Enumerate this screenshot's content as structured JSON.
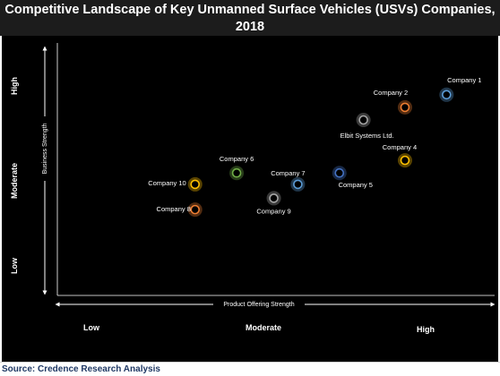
{
  "header": {
    "title": "Competitive Landscape of Key Unmanned Surface Vehicles (USVs) Companies, 2018"
  },
  "footer": {
    "source": "Source: Credence Research Analysis"
  },
  "chart_data": {
    "type": "scatter",
    "title": "Competitive Landscape of Key Unmanned Surface Vehicles (USVs) Companies, 2018",
    "xlabel": "Product Offering Strength",
    "ylabel": "Business Strength",
    "xlim": [
      0,
      10
    ],
    "ylim": [
      0,
      10
    ],
    "x_tick_labels": [
      "Low",
      "Moderate",
      "High"
    ],
    "y_tick_labels": [
      "Low",
      "Moderate",
      "High"
    ],
    "grid": false,
    "legend": "none",
    "points": [
      {
        "label": "Company 1",
        "x": 8.9,
        "y": 7.95,
        "color": "#5b9bd5"
      },
      {
        "label": "Company 2",
        "x": 7.95,
        "y": 7.45,
        "color": "#ed7d31"
      },
      {
        "label": "Elbit Systems Ltd.",
        "x": 7.0,
        "y": 6.95,
        "color": "#a5a5a5"
      },
      {
        "label": "Company 4",
        "x": 7.95,
        "y": 5.35,
        "color": "#ffc000"
      },
      {
        "label": "Company 5",
        "x": 6.45,
        "y": 4.85,
        "color": "#4472c4"
      },
      {
        "label": "Company 6",
        "x": 4.1,
        "y": 4.85,
        "color": "#70ad47"
      },
      {
        "label": "Company 7",
        "x": 5.5,
        "y": 4.4,
        "color": "#5b9bd5"
      },
      {
        "label": "Company 10",
        "x": 3.15,
        "y": 4.4,
        "color": "#ffc000"
      },
      {
        "label": "Company 9",
        "x": 4.95,
        "y": 3.85,
        "color": "#a5a5a5"
      },
      {
        "label": "Company 8",
        "x": 3.15,
        "y": 3.4,
        "color": "#ed7d31"
      }
    ]
  }
}
